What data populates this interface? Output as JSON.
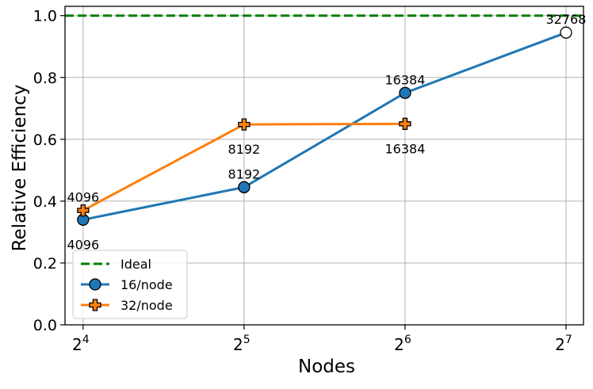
{
  "chart_data": {
    "type": "line",
    "xscale": "log2",
    "x_ticks": [
      {
        "value": 16,
        "base": "2",
        "exp": "4"
      },
      {
        "value": 32,
        "base": "2",
        "exp": "5"
      },
      {
        "value": 64,
        "base": "2",
        "exp": "6"
      },
      {
        "value": 128,
        "base": "2",
        "exp": "7"
      }
    ],
    "y_ticks": [
      "0.0",
      "0.2",
      "0.4",
      "0.6",
      "0.8",
      "1.0"
    ],
    "xlabel": "Nodes",
    "ylabel": "Relative Efficiency",
    "xlim": [
      14.8,
      138
    ],
    "ylim": [
      0,
      1.03
    ],
    "grid": true,
    "legend_position": "lower-left",
    "ideal": {
      "name": "Ideal",
      "value": 1.0,
      "color": "#008000"
    },
    "series": [
      {
        "name": "16/node",
        "color": "#1f77b4",
        "marker": "circle",
        "points": [
          {
            "x": 16,
            "y": 0.34,
            "label": "4096",
            "label_pos": "below"
          },
          {
            "x": 32,
            "y": 0.445,
            "label": "8192",
            "label_pos": "above"
          },
          {
            "x": 64,
            "y": 0.75,
            "label": "16384",
            "label_pos": "above"
          },
          {
            "x": 128,
            "y": 0.945,
            "label": "32768",
            "label_pos": "above",
            "hollow": true
          }
        ]
      },
      {
        "name": "32/node",
        "color": "#ff7f0e",
        "marker": "plus",
        "points": [
          {
            "x": 16,
            "y": 0.37,
            "label": "4096",
            "label_pos": "above"
          },
          {
            "x": 32,
            "y": 0.648,
            "label": "8192",
            "label_pos": "below"
          },
          {
            "x": 64,
            "y": 0.65,
            "label": "16384",
            "label_pos": "below"
          }
        ]
      }
    ]
  }
}
